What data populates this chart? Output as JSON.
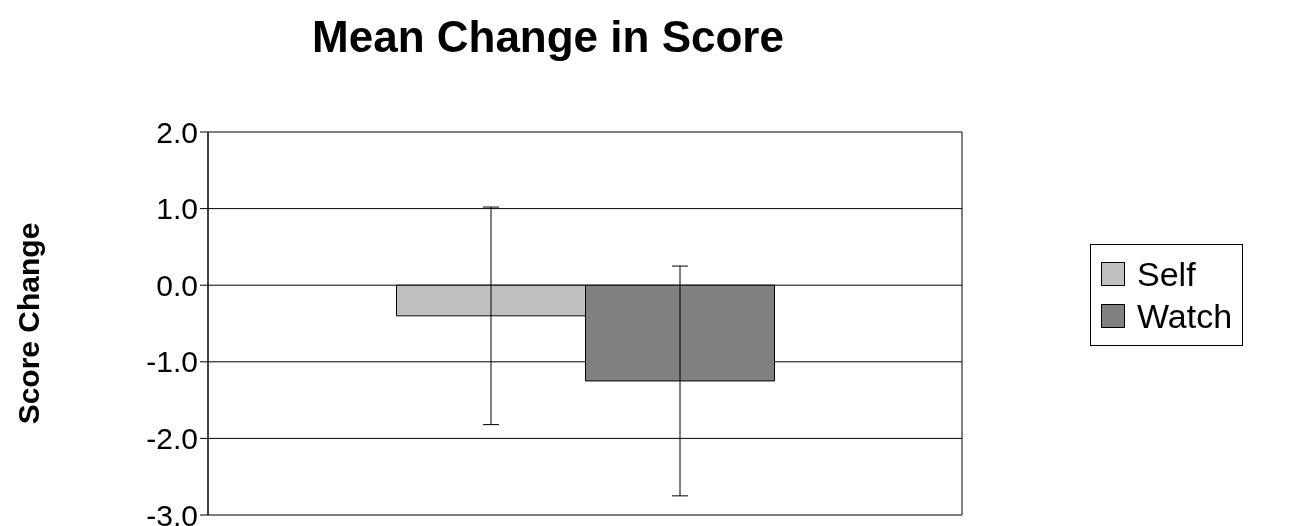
{
  "chart_data": {
    "type": "bar",
    "title": "Mean Change in Score",
    "ylabel": "Score Change",
    "categories": [
      null
    ],
    "series": [
      {
        "name": "Self",
        "color": "#c0c0c0",
        "values": [
          -0.4
        ],
        "errors": [
          1.42
        ]
      },
      {
        "name": "Watch",
        "color": "#808080",
        "values": [
          -1.25
        ],
        "errors": [
          1.5
        ]
      }
    ],
    "ylim": [
      -3,
      2
    ],
    "yticks": [
      {
        "value": -3,
        "label": "-3.0"
      },
      {
        "value": -2,
        "label": "-2.0"
      },
      {
        "value": -1,
        "label": "-1.0"
      },
      {
        "value": 0,
        "label": "0.0"
      },
      {
        "value": 1,
        "label": "1.0"
      },
      {
        "value": 2,
        "label": "2.0"
      }
    ],
    "grid": "y",
    "legend": "right"
  }
}
